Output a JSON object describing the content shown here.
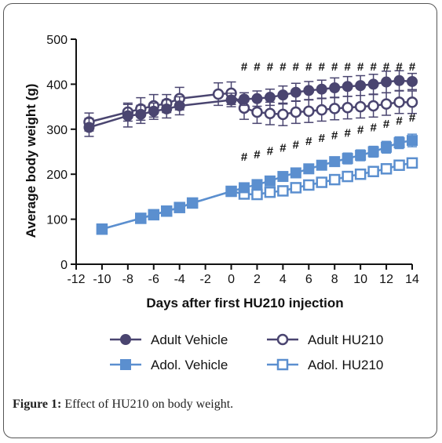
{
  "figure": {
    "caption_label": "Figure 1:",
    "caption_text": " Effect of HU210 on body weight."
  },
  "chart_data": {
    "type": "line",
    "xlabel": "Days after first HU210 injection",
    "ylabel": "Average body weight (g)",
    "xlim": [
      -12,
      14
    ],
    "ylim": [
      0,
      500
    ],
    "x_ticks": [
      -12,
      -10,
      -8,
      -6,
      -4,
      -2,
      0,
      2,
      4,
      6,
      8,
      10,
      12,
      14
    ],
    "y_ticks": [
      0,
      100,
      200,
      300,
      400,
      500
    ],
    "grid": false,
    "legend_position": "bottom",
    "colors": {
      "adult": "#4a4570",
      "adol": "#5b8fcf"
    },
    "series": [
      {
        "name": "Adult Vehicle",
        "marker": "filled-circle",
        "color": "#4a4570",
        "x": [
          -11,
          -8,
          -7,
          -6,
          -5,
          -4,
          0,
          1,
          2,
          3,
          4,
          5,
          6,
          7,
          8,
          9,
          10,
          11,
          12,
          13,
          14
        ],
        "values": [
          304,
          330,
          333,
          340,
          345,
          352,
          365,
          367,
          368,
          371,
          376,
          382,
          386,
          389,
          392,
          395,
          397,
          400,
          405,
          408,
          406
        ],
        "errors": [
          20,
          25,
          20,
          18,
          20,
          20,
          15,
          14,
          17,
          18,
          20,
          20,
          20,
          20,
          22,
          22,
          22,
          22,
          24,
          22,
          18
        ]
      },
      {
        "name": "Adult HU210",
        "marker": "open-circle",
        "color": "#4a4570",
        "x": [
          -11,
          -8,
          -7,
          -6,
          -5,
          -4,
          -1,
          0,
          1,
          2,
          3,
          4,
          5,
          6,
          7,
          8,
          9,
          10,
          11,
          12,
          13,
          14
        ],
        "values": [
          316,
          338,
          345,
          352,
          357,
          368,
          378,
          380,
          347,
          338,
          335,
          333,
          338,
          340,
          343,
          346,
          348,
          350,
          352,
          356,
          360,
          360
        ],
        "errors": [
          20,
          20,
          25,
          25,
          20,
          25,
          25,
          25,
          25,
          25,
          25,
          25,
          25,
          25,
          25,
          25,
          25,
          25,
          25,
          25,
          25,
          25
        ]
      },
      {
        "name": "Adol. Vehicle",
        "marker": "filled-square",
        "color": "#5b8fcf",
        "x": [
          -10,
          -7,
          -6,
          -5,
          -4,
          -3,
          0,
          1,
          2,
          3,
          4,
          5,
          6,
          7,
          8,
          9,
          10,
          11,
          12,
          13,
          14
        ],
        "values": [
          78,
          102,
          110,
          118,
          126,
          136,
          162,
          170,
          177,
          185,
          195,
          203,
          212,
          220,
          228,
          235,
          242,
          250,
          260,
          270,
          275
        ],
        "errors": [
          5,
          5,
          5,
          5,
          5,
          5,
          6,
          6,
          8,
          10,
          10,
          10,
          10,
          10,
          10,
          12,
          12,
          12,
          13,
          13,
          14
        ]
      },
      {
        "name": "Adol. HU210",
        "marker": "open-square",
        "color": "#5b8fcf",
        "x": [
          -10,
          -7,
          -6,
          -5,
          -4,
          -3,
          0,
          1,
          2,
          3,
          4,
          5,
          6,
          7,
          8,
          9,
          10,
          11,
          12,
          13,
          14
        ],
        "values": [
          78,
          102,
          110,
          118,
          126,
          136,
          162,
          156,
          155,
          160,
          163,
          170,
          176,
          182,
          188,
          195,
          200,
          206,
          212,
          220,
          225
        ],
        "errors": [
          5,
          5,
          5,
          5,
          5,
          5,
          6,
          8,
          8,
          8,
          8,
          8,
          8,
          8,
          8,
          8,
          8,
          10,
          10,
          10,
          10
        ]
      }
    ],
    "annotations": {
      "symbol": "#",
      "adult_days": [
        1,
        2,
        3,
        4,
        5,
        6,
        7,
        8,
        9,
        10,
        11,
        12,
        13,
        14
      ],
      "adol_days": [
        1,
        2,
        3,
        4,
        5,
        6,
        7,
        8,
        9,
        10,
        11,
        12,
        13,
        14
      ],
      "adult_level": 430,
      "adol_levels": [
        230,
        235,
        243,
        250,
        257,
        265,
        272,
        278,
        283,
        290,
        295,
        303,
        310,
        317
      ]
    }
  }
}
